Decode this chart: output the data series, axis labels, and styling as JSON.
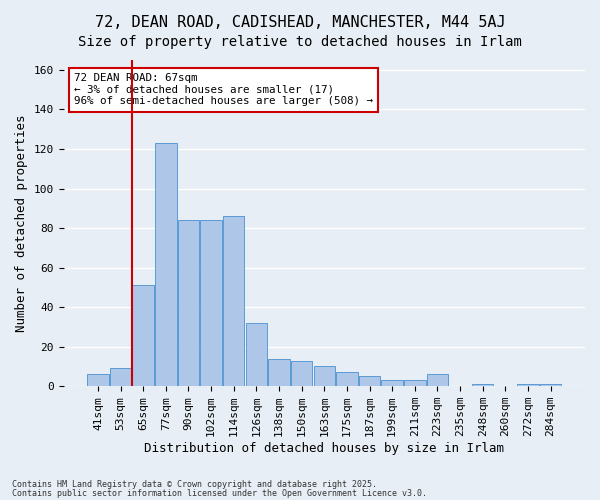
{
  "title1": "72, DEAN ROAD, CADISHEAD, MANCHESTER, M44 5AJ",
  "title2": "Size of property relative to detached houses in Irlam",
  "xlabel": "Distribution of detached houses by size in Irlam",
  "ylabel": "Number of detached properties",
  "categories": [
    "41sqm",
    "53sqm",
    "65sqm",
    "77sqm",
    "90sqm",
    "102sqm",
    "114sqm",
    "126sqm",
    "138sqm",
    "150sqm",
    "163sqm",
    "175sqm",
    "187sqm",
    "199sqm",
    "211sqm",
    "223sqm",
    "235sqm",
    "248sqm",
    "260sqm",
    "272sqm",
    "284sqm"
  ],
  "values": [
    6,
    9,
    51,
    123,
    84,
    84,
    86,
    32,
    14,
    13,
    10,
    7,
    5,
    3,
    3,
    6,
    0,
    1,
    0,
    1,
    1
  ],
  "bar_color": "#aec6e8",
  "bar_edge_color": "#5b9bd5",
  "background_color": "#e8eef5",
  "grid_color": "#ffffff",
  "annotation_text": "72 DEAN ROAD: 67sqm\n← 3% of detached houses are smaller (17)\n96% of semi-detached houses are larger (508) →",
  "annotation_box_color": "#ffffff",
  "annotation_box_edge_color": "#cc0000",
  "vline_color": "#cc0000",
  "vline_pos": 1.525,
  "ylim": [
    0,
    165
  ],
  "yticks": [
    0,
    20,
    40,
    60,
    80,
    100,
    120,
    140,
    160
  ],
  "footer1": "Contains HM Land Registry data © Crown copyright and database right 2025.",
  "footer2": "Contains public sector information licensed under the Open Government Licence v3.0.",
  "title_fontsize": 11,
  "subtitle_fontsize": 10,
  "axis_fontsize": 9,
  "tick_fontsize": 8
}
